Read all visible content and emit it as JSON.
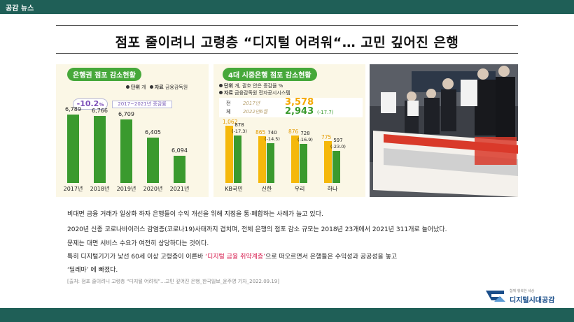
{
  "topbar": {
    "label": "공감 뉴스"
  },
  "headline": "점포 줄이려니 고령층 “디지털 어려워“… 고민 깊어진 은행",
  "left_panel": {
    "title": "은행권 점포 감소현황",
    "unit_label": "단위",
    "unit_value": "개",
    "source_label": "자료",
    "source_value": "금융감독원",
    "change_value": "-10.2",
    "change_suffix": "%",
    "change_caption": "2017~2021년 증감률"
  },
  "mid_panel": {
    "title": "4대 시중은행 점포 감소현황",
    "unit_label": "단위",
    "unit_value": "개, 괄호 안은 증감율 %",
    "source_label": "자료",
    "source_value": "금융감독원 전자공시시스템",
    "total_label_1": "전",
    "total_label_2": "체",
    "total_year_1": "2017년",
    "total_value_1": "3,578",
    "total_year_2": "2022년6월",
    "total_value_2": "2,943",
    "total_change": "(-17.7)"
  },
  "chart_data": [
    {
      "type": "bar",
      "title": "은행권 점포 감소현황",
      "categories": [
        "2017년",
        "2018년",
        "2019년",
        "2020년",
        "2021년"
      ],
      "values": [
        6789,
        6766,
        6709,
        6405,
        6094
      ],
      "labels": [
        "6,789",
        "6,766",
        "6,709",
        "6,405",
        "6,094"
      ],
      "color": "#3a9a2e"
    },
    {
      "type": "bar",
      "title": "4대 시중은행 점포 감소현황",
      "categories": [
        "KB국민",
        "신한",
        "우리",
        "하나"
      ],
      "series": [
        {
          "values": [
            1062,
            865,
            876,
            775
          ],
          "labels": [
            "1,062",
            "865",
            "876",
            "775"
          ],
          "color": "#f5b80b"
        },
        {
          "values": [
            878,
            740,
            728,
            597
          ],
          "labels": [
            "878",
            "740",
            "728",
            "597"
          ],
          "changes": [
            "(-17.3)",
            "(-14.5)",
            "(-16.9)",
            "(-23.0)"
          ],
          "color": "#3a9a2e"
        }
      ]
    }
  ],
  "photo": {
    "banner_text": "지점 판매하는 대책 진정서 제출 기자회견",
    "banner_side": "금융노조"
  },
  "body": {
    "line1": "비대면 금융 거래가 일상화 하자 은행들이 수익 개선을 위해 지점을 통·폐합하는 사례가 늘고 있다.",
    "line2": "2020년 신종 코로나바이러스 감염증(코로나19)사태까지 겹치며, 전체 은행의 점포 감소 규모는 2018년 23개에서 2021년 311개로 늘어났다.",
    "line3": "문제는 대면 서비스 수요가 여전히 상당하다는 것이다.",
    "line4_pre": "특히 디지털기기가 낯선 60세 이상 고령층이 이른바 ",
    "line4_hl": "‘디지털 금융 취약계층’",
    "line4_post": "으로 떠오르면서 은행들은 수익성과 공공성을 놓고",
    "line5": "‘딜레마’ 에 빠졌다.",
    "source": "[출처: 점포 줄이려니 고령층 “디지털 어려워”…고민 깊어진 은행_한국일보_윤주영 기자_2022.09.19]"
  },
  "logo": {
    "sub": "함께 행복한 세상",
    "text": "디지털시대공감"
  },
  "colors": {
    "brand": "#1f5f57",
    "green": "#3a9a2e",
    "yellow": "#f5b80b",
    "highlight": "#d61c4e"
  }
}
